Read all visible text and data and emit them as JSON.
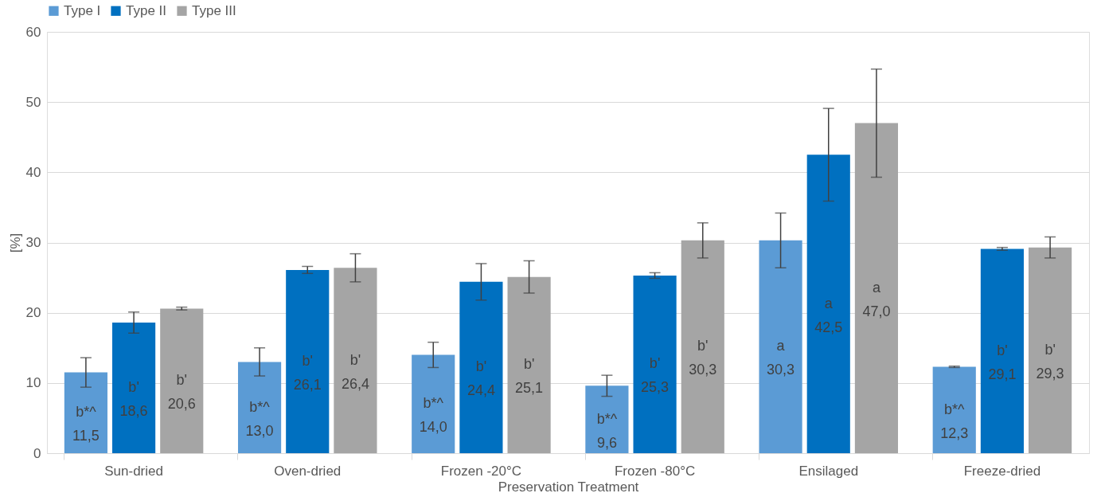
{
  "chart_data": {
    "type": "bar",
    "xlabel": "Preservation Treatment",
    "ylabel": "[%]",
    "categories": [
      "Sun-dried",
      "Oven-dried",
      "Frozen -20°C",
      "Frozen -80°C",
      "Ensilaged",
      "Freeze-dried"
    ],
    "series": [
      {
        "name": "Type I",
        "color": "#5b9bd5",
        "values": [
          11.5,
          13.0,
          14.0,
          9.6,
          30.3,
          12.3
        ],
        "errors": [
          2.1,
          2.0,
          1.8,
          1.5,
          3.9,
          0.1
        ],
        "value_labels": [
          "b*^\n11,5",
          "b*^\n13,0",
          "b*^\n14,0",
          "b*^\n9,6",
          "a\n30,3",
          "b*^\n12,3"
        ]
      },
      {
        "name": "Type II",
        "color": "#0070c0",
        "values": [
          18.6,
          26.1,
          24.4,
          25.3,
          42.5,
          29.1
        ],
        "errors": [
          1.5,
          0.5,
          2.6,
          0.4,
          6.6,
          0.2
        ],
        "value_labels": [
          "b'\n18,6",
          "b'\n26,1",
          "b'\n24,4",
          "b'\n25,3",
          "a\n42,5",
          "b'\n29,1"
        ]
      },
      {
        "name": "Type III",
        "color": "#a5a5a5",
        "values": [
          20.6,
          26.4,
          25.1,
          30.3,
          47.0,
          29.3
        ],
        "errors": [
          0.2,
          2.0,
          2.3,
          2.5,
          7.7,
          1.5
        ],
        "value_labels": [
          "b'\n20,6",
          "b'\n26,4",
          "b'\n25,1",
          "b'\n30,3",
          "a\n47,0",
          "b'\n29,3"
        ]
      }
    ],
    "ylim": [
      0,
      60
    ],
    "yticks": [
      0,
      10,
      20,
      30,
      40,
      50,
      60
    ],
    "grid": "y",
    "legend": "top"
  }
}
